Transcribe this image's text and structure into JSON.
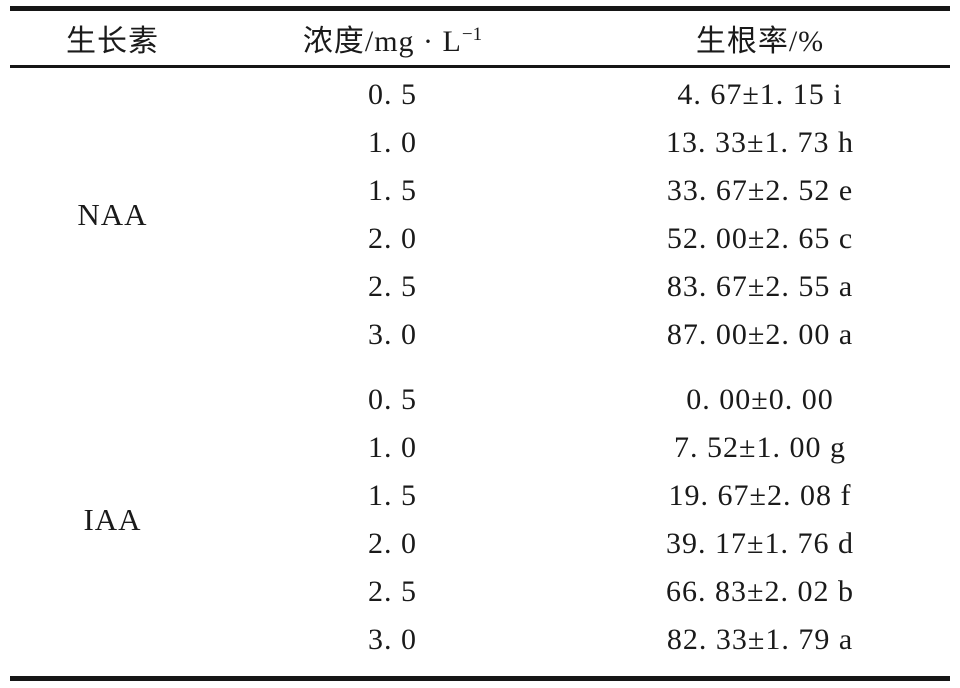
{
  "table": {
    "headers": {
      "auxin": "生长素",
      "concentration_prefix": "浓度/mg · L",
      "concentration_sup": "−1",
      "rooting_rate": "生根率/%"
    },
    "groups": [
      {
        "name": "NAA",
        "rows": [
          {
            "conc": "0. 5",
            "rate": "4. 67±1. 15 i"
          },
          {
            "conc": "1. 0",
            "rate": "13. 33±1. 73 h"
          },
          {
            "conc": "1. 5",
            "rate": "33. 67±2. 52 e"
          },
          {
            "conc": "2. 0",
            "rate": "52. 00±2. 65 c"
          },
          {
            "conc": "2. 5",
            "rate": "83. 67±2. 55 a"
          },
          {
            "conc": "3. 0",
            "rate": "87. 00±2. 00 a"
          }
        ]
      },
      {
        "name": "IAA",
        "rows": [
          {
            "conc": "0. 5",
            "rate": "0. 00±0. 00"
          },
          {
            "conc": "1. 0",
            "rate": "7. 52±1. 00 g"
          },
          {
            "conc": "1. 5",
            "rate": "19. 67±2. 08 f"
          },
          {
            "conc": "2. 0",
            "rate": "39. 17±1. 76 d"
          },
          {
            "conc": "2. 5",
            "rate": "66. 83±2. 02 b"
          },
          {
            "conc": "3. 0",
            "rate": "82. 33±1. 79 a"
          }
        ]
      }
    ],
    "line_color": "#161616",
    "text_color": "#1a1a1a"
  },
  "chart_data": {
    "type": "table",
    "title": "",
    "columns": [
      "生长素",
      "浓度/mg·L⁻¹",
      "生根率/%"
    ],
    "series": [
      {
        "name": "NAA",
        "x": [
          0.5,
          1.0,
          1.5,
          2.0,
          2.5,
          3.0
        ],
        "values": [
          4.67,
          13.33,
          33.67,
          52.0,
          83.67,
          87.0
        ],
        "std": [
          1.15,
          1.73,
          2.52,
          2.65,
          2.55,
          2.0
        ],
        "sig_letters": [
          "i",
          "h",
          "e",
          "c",
          "a",
          "a"
        ]
      },
      {
        "name": "IAA",
        "x": [
          0.5,
          1.0,
          1.5,
          2.0,
          2.5,
          3.0
        ],
        "values": [
          0.0,
          7.52,
          19.67,
          39.17,
          66.83,
          82.33
        ],
        "std": [
          0.0,
          1.0,
          2.08,
          1.76,
          2.02,
          1.79
        ],
        "sig_letters": [
          "",
          "g",
          "f",
          "d",
          "b",
          "a"
        ]
      }
    ]
  }
}
